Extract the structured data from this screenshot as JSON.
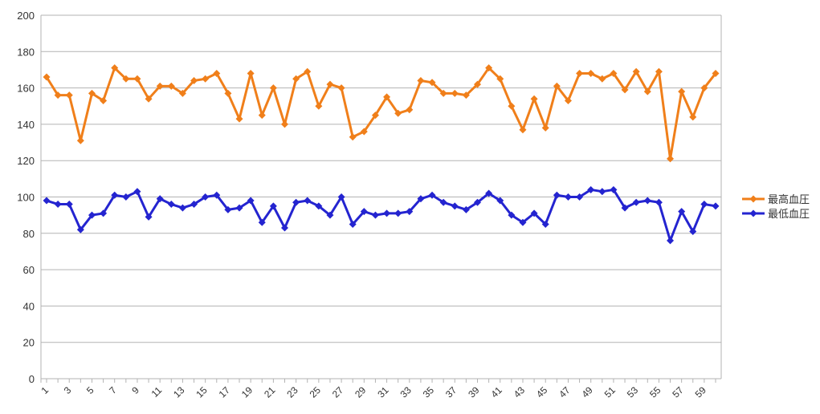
{
  "chart_data": {
    "type": "line",
    "title": "",
    "xlabel": "",
    "ylabel": "",
    "ylim": [
      0,
      200
    ],
    "yticks": [
      0,
      20,
      40,
      60,
      80,
      100,
      120,
      140,
      160,
      180,
      200
    ],
    "xlim": [
      1,
      60
    ],
    "xtick_labels": [
      "1",
      "3",
      "5",
      "7",
      "9",
      "11",
      "13",
      "15",
      "17",
      "19",
      "21",
      "23",
      "25",
      "27",
      "29",
      "31",
      "33",
      "35",
      "37",
      "39",
      "41",
      "43",
      "45",
      "47",
      "49",
      "51",
      "53",
      "55",
      "57",
      "59"
    ],
    "grid": "horizontal",
    "legend_position": "right",
    "x": [
      1,
      2,
      3,
      4,
      5,
      6,
      7,
      8,
      9,
      10,
      11,
      12,
      13,
      14,
      15,
      16,
      17,
      18,
      19,
      20,
      21,
      22,
      23,
      24,
      25,
      26,
      27,
      28,
      29,
      30,
      31,
      32,
      33,
      34,
      35,
      36,
      37,
      38,
      39,
      40,
      41,
      42,
      43,
      44,
      45,
      46,
      47,
      48,
      49,
      50,
      51,
      52,
      53,
      54,
      55,
      56,
      57,
      58,
      59,
      60
    ],
    "series": [
      {
        "name": "最高血圧",
        "color": "#f07f1a",
        "values": [
          166,
          156,
          156,
          131,
          157,
          153,
          171,
          165,
          165,
          154,
          161,
          161,
          157,
          164,
          165,
          168,
          157,
          143,
          168,
          145,
          160,
          140,
          165,
          169,
          150,
          162,
          160,
          133,
          136,
          145,
          155,
          146,
          148,
          164,
          163,
          157,
          157,
          156,
          162,
          171,
          165,
          150,
          137,
          154,
          138,
          161,
          153,
          168,
          168,
          165,
          168,
          159,
          169,
          158,
          169,
          121,
          158,
          144,
          160,
          168
        ]
      },
      {
        "name": "最低血圧",
        "color": "#2424d0",
        "values": [
          98,
          96,
          96,
          82,
          90,
          91,
          101,
          100,
          103,
          89,
          99,
          96,
          94,
          96,
          100,
          101,
          93,
          94,
          98,
          86,
          95,
          83,
          97,
          98,
          95,
          90,
          100,
          85,
          92,
          90,
          91,
          91,
          92,
          99,
          101,
          97,
          95,
          93,
          97,
          102,
          98,
          90,
          86,
          91,
          85,
          101,
          100,
          100,
          104,
          103,
          104,
          94,
          97,
          98,
          97,
          76,
          92,
          81,
          96,
          95
        ]
      }
    ]
  }
}
